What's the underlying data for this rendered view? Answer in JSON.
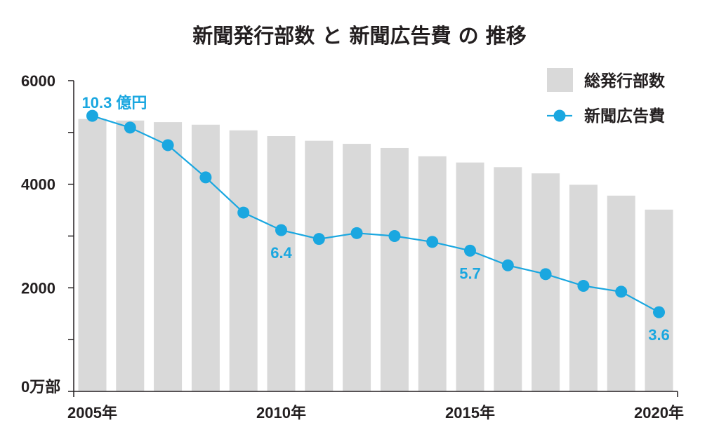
{
  "chart_data": {
    "type": "bar",
    "title": "新聞発行部数 と 新聞広告費 の 推移",
    "x": [
      2005,
      2006,
      2007,
      2008,
      2009,
      2010,
      2011,
      2012,
      2013,
      2014,
      2015,
      2016,
      2017,
      2018,
      2019,
      2020
    ],
    "x_tick_labels": [
      {
        "x": 2005,
        "label": "2005年"
      },
      {
        "x": 2010,
        "label": "2010年"
      },
      {
        "x": 2015,
        "label": "2015年"
      },
      {
        "x": 2020,
        "label": "2020年"
      }
    ],
    "ylim": [
      0,
      6000
    ],
    "y_ticks": [
      0,
      1000,
      2000,
      3000,
      4000,
      5000,
      6000
    ],
    "y_tick_labels": [
      {
        "value": 0,
        "label": "0万部"
      },
      {
        "value": 2000,
        "label": "2000"
      },
      {
        "value": 4000,
        "label": "4000"
      },
      {
        "value": 6000,
        "label": "6000"
      }
    ],
    "series": [
      {
        "name": "総発行部数",
        "type": "bar",
        "color": "#d9d9d9",
        "values": [
          5260,
          5230,
          5200,
          5150,
          5040,
          4930,
          4840,
          4780,
          4700,
          4540,
          4420,
          4330,
          4210,
          3990,
          3780,
          3510
        ]
      },
      {
        "name": "新聞広告費",
        "type": "line",
        "color": "#1aa7e0",
        "ylim": [
          0.9,
          11.5
        ],
        "values": [
          10.3,
          9.9,
          9.3,
          8.2,
          7.0,
          6.4,
          6.1,
          6.3,
          6.2,
          6.0,
          5.7,
          5.2,
          4.9,
          4.5,
          4.3,
          3.6
        ],
        "data_labels": [
          {
            "x": 2005,
            "text": "10.3 億円"
          },
          {
            "x": 2010,
            "text": "6.4"
          },
          {
            "x": 2015,
            "text": "5.7"
          },
          {
            "x": 2020,
            "text": "3.6"
          }
        ]
      }
    ],
    "legend": "top-right",
    "grid": false
  }
}
